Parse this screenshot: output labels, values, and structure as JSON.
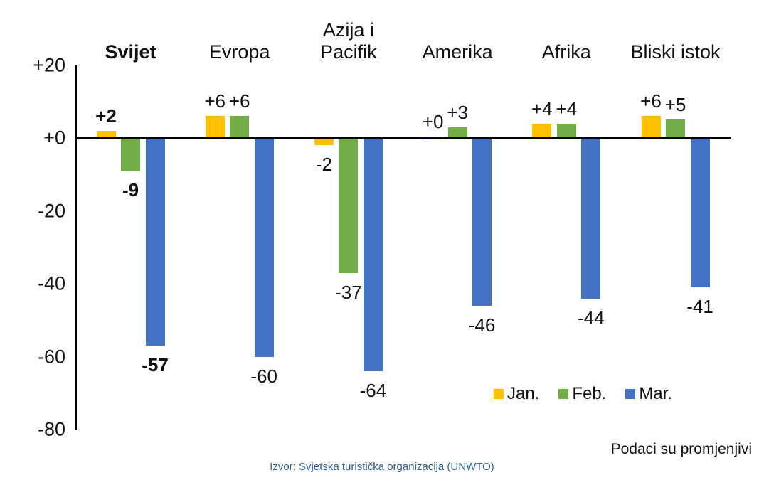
{
  "page": {
    "footer_note": "Podaci su promjenjivi",
    "source": "Izvor: Svjetska turistička organizacija (UNWTO)",
    "source_color": "#2E5C9E"
  },
  "chart_data": {
    "type": "bar",
    "categories": [
      "Svijet",
      "Evropa",
      "Azija i Pacifik",
      "Amerika",
      "Afrika",
      "Bliski istok"
    ],
    "category_lines": [
      [
        "Svijet"
      ],
      [
        "Evropa"
      ],
      [
        "Azija i",
        "Pacifik"
      ],
      [
        "Amerika"
      ],
      [
        "Afrika"
      ],
      [
        "Bliski istok"
      ]
    ],
    "emphasized_category": "Svijet",
    "series": [
      {
        "name": "Jan.",
        "color": "#FFC000",
        "values": [
          2,
          6,
          -2,
          0,
          4,
          6
        ],
        "labels": [
          "+2",
          "+6",
          "-2",
          "+0",
          "+4",
          "+6"
        ]
      },
      {
        "name": "Feb.",
        "color": "#70AD47",
        "values": [
          -9,
          6,
          -37,
          3,
          4,
          5
        ],
        "labels": [
          "-9",
          "+6",
          "-37",
          "+3",
          "+4",
          "+5"
        ]
      },
      {
        "name": "Mar.",
        "color": "#4472C4",
        "values": [
          -57,
          -60,
          -64,
          -46,
          -44,
          -41
        ],
        "labels": [
          "-57",
          "-60",
          "-64",
          "-46",
          "-44",
          "-41"
        ]
      }
    ],
    "y_axis": {
      "ylim": [
        -80,
        20
      ],
      "ticks": [
        {
          "label": "+20",
          "value": 20
        },
        {
          "label": "+0",
          "value": 0
        },
        {
          "label": "-20",
          "value": -20
        },
        {
          "label": "-40",
          "value": -40
        },
        {
          "label": "-60",
          "value": -60
        },
        {
          "label": "-80",
          "value": -80
        }
      ]
    },
    "legend": {
      "items": [
        "Jan.",
        "Feb.",
        "Mar."
      ],
      "position": "inside-bottom-right"
    },
    "grid": false
  }
}
